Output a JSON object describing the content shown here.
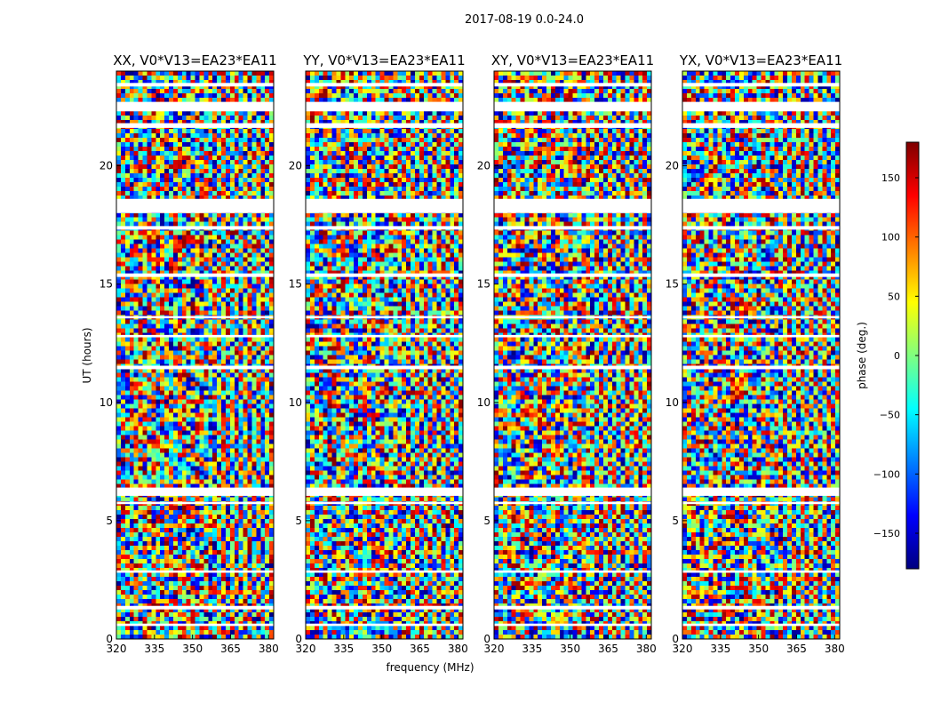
{
  "suptitle": "2017-08-19 0.0-24.0",
  "xlabel": "frequency (MHz)",
  "ylabel": "UT (hours)",
  "colorbar": {
    "label": "phase (deg.)",
    "range": [
      -180,
      180
    ],
    "ticks": [
      "150",
      "100",
      "50",
      "0",
      "−50",
      "−100",
      "−150"
    ],
    "tick_values": [
      150,
      100,
      50,
      0,
      -50,
      -100,
      -150
    ],
    "colormap": "jet"
  },
  "chart_data": {
    "type": "heatmap",
    "title": "2017-08-19 0.0-24.0",
    "xlabel": "frequency (MHz)",
    "ylabel": "UT (hours)",
    "xlim": [
      320,
      382
    ],
    "ylim": [
      0,
      24
    ],
    "xticks": [
      320,
      335,
      350,
      365,
      380
    ],
    "yticks": [
      0,
      5,
      10,
      15,
      20
    ],
    "zlabel": "phase (deg.)",
    "zlim": [
      -180,
      180
    ],
    "panels": [
      {
        "title": "XX, V0*V13=EA23*EA11"
      },
      {
        "title": "YY, V0*V13=EA23*EA11"
      },
      {
        "title": "XY, V0*V13=EA23*EA11"
      },
      {
        "title": "YX, V0*V13=EA23*EA11"
      }
    ],
    "gaps_hours": [
      [
        23.35,
        23.5
      ],
      [
        22.3,
        22.7
      ],
      [
        21.6,
        21.8
      ],
      [
        18.0,
        18.6
      ],
      [
        17.3,
        17.45
      ],
      [
        15.3,
        15.45
      ],
      [
        13.55,
        13.65
      ],
      [
        12.75,
        12.85
      ],
      [
        11.4,
        11.55
      ],
      [
        6.05,
        6.4
      ],
      [
        5.7,
        5.8
      ],
      [
        2.8,
        2.9
      ],
      [
        1.25,
        1.4
      ],
      [
        0.55,
        0.65
      ]
    ]
  }
}
